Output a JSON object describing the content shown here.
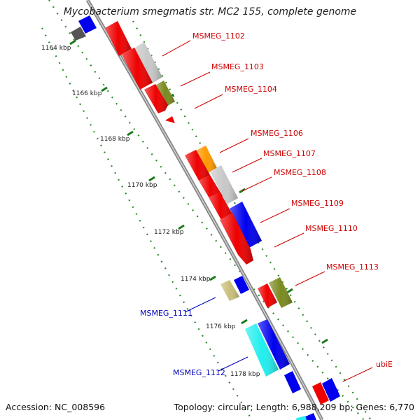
{
  "title": "Mycobacterium smegmatis str. MC2 155, complete genome",
  "accession": "Accession: NC_008596",
  "topology": "Topology: circular; Length: 6,988,209 bp; Genes: 6,770",
  "ticks": [
    "1164 kbp",
    "1166 kbp",
    "1168 kbp",
    "1170 kbp",
    "1172 kbp",
    "1174 kbp",
    "1176 kbp",
    "1178 kbp"
  ],
  "gene_labels_forward": [
    "MSMEG_1102",
    "MSMEG_1103",
    "MSMEG_1104",
    "MSMEG_1106",
    "MSMEG_1107",
    "MSMEG_1108",
    "MSMEG_1109",
    "MSMEG_1110",
    "MSMEG_1113",
    "ubiE"
  ],
  "gene_labels_reverse": [
    "MSMEG_1111",
    "MSMEG_1112"
  ],
  "colors": {
    "forward_label": "#cc0000",
    "reverse_label": "#0000bb",
    "backbone": "#888888",
    "tick_dots": "#2e8b2e",
    "gene_red": "#ee0000",
    "gene_blue": "#0000ee",
    "gene_grey": "#c8c8c8",
    "gene_olive": "#7a8a20",
    "gene_orange": "#ff9900",
    "gene_cyan": "#22eeee",
    "gene_khaki": "#c9bf7a"
  }
}
